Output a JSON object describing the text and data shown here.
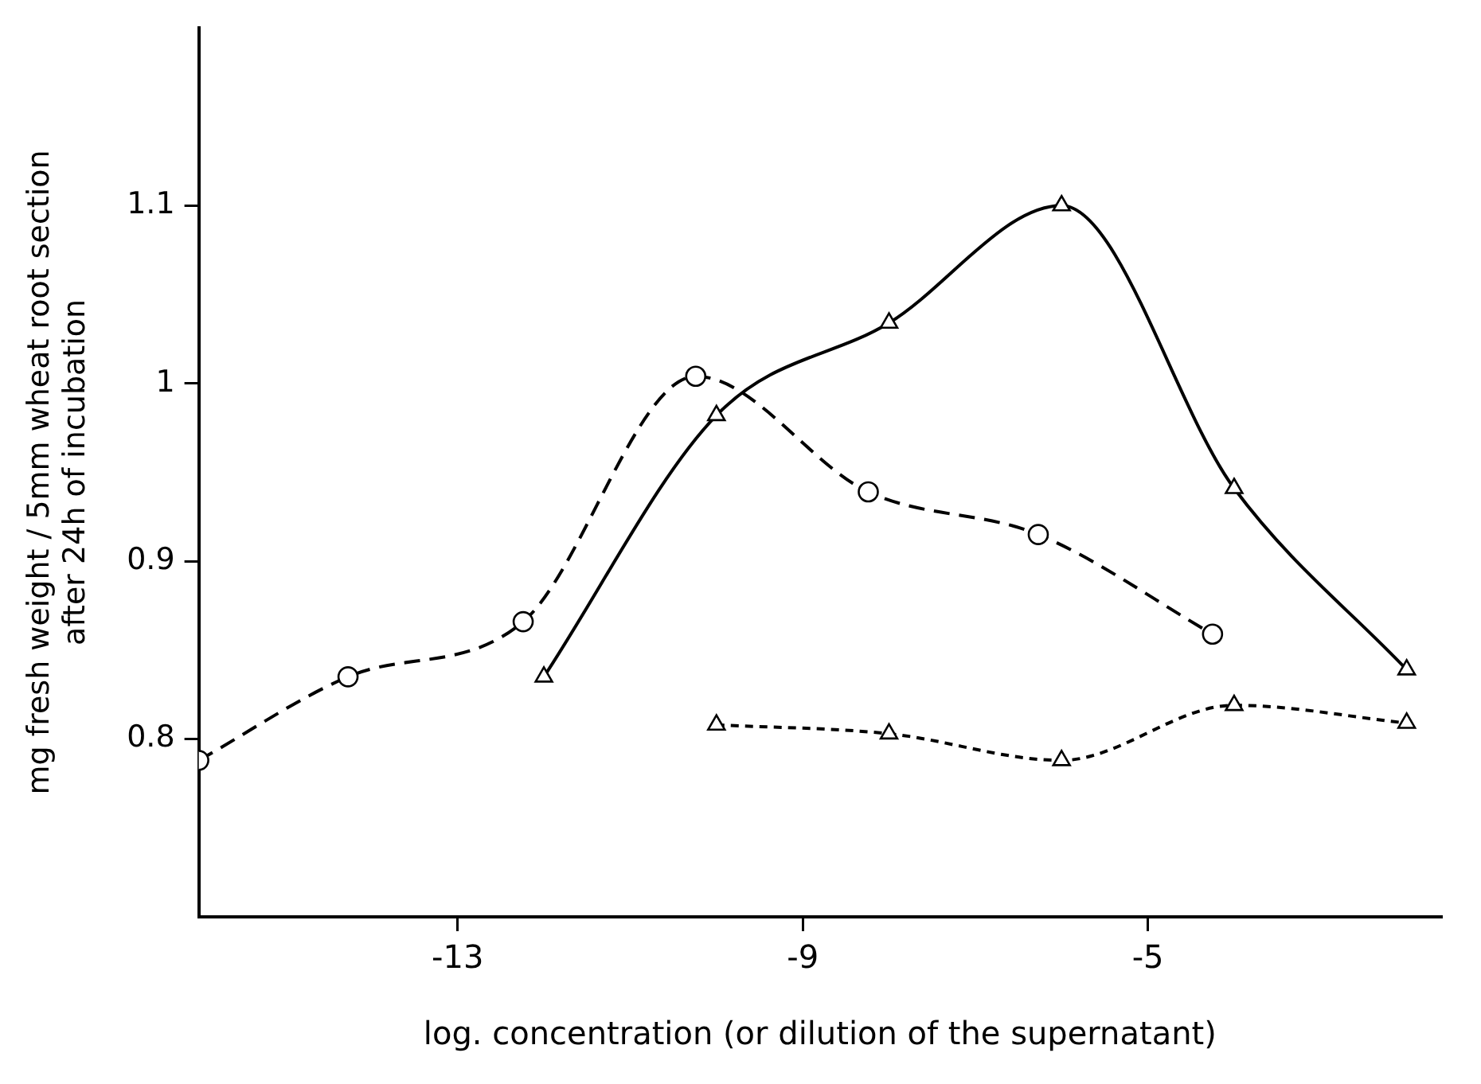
{
  "chart_data": {
    "type": "line",
    "xlabel": "log. concentration (or dilution of the supernatant)",
    "ylabel": "mg fresh weight / 5mm wheat root section\nafter 24h of incubation",
    "xlim": [
      -16,
      -1.6
    ],
    "xticks": [
      -13,
      -9,
      -5
    ],
    "ylim": [
      0.7,
      1.2
    ],
    "yticks": [
      0.8,
      0.9,
      1,
      1.1
    ],
    "grid": false,
    "legend": false,
    "series": [
      {
        "color": "#000000",
        "marker": "circle",
        "line_style": "dashed",
        "x": [
          -16,
          -14.27,
          -12.24,
          -10.24,
          -8.24,
          -6.27,
          -4.25
        ],
        "values": [
          0.788,
          0.835,
          0.866,
          1.004,
          0.939,
          0.915,
          0.859
        ]
      },
      {
        "color": "#000000",
        "marker": "triangle",
        "line_style": "solid",
        "x": [
          -12,
          -10,
          -8,
          -6,
          -4,
          -2
        ],
        "values": [
          0.835,
          0.982,
          1.034,
          1.1,
          0.941,
          0.839
        ]
      },
      {
        "color": "#000000",
        "marker": "triangle",
        "line_style": "dotted",
        "x": [
          -10,
          -8,
          -6,
          -4,
          -2
        ],
        "values": [
          0.808,
          0.803,
          0.788,
          0.819,
          0.809
        ]
      }
    ]
  }
}
